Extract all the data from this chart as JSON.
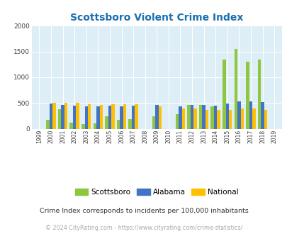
{
  "title": "Scottsboro Violent Crime Index",
  "title_color": "#1a6faf",
  "years": [
    1999,
    2000,
    2001,
    2002,
    2003,
    2004,
    2005,
    2006,
    2007,
    2008,
    2009,
    2010,
    2011,
    2012,
    2013,
    2014,
    2015,
    2016,
    2017,
    2018,
    2019
  ],
  "scottsboro": [
    0,
    170,
    380,
    120,
    90,
    110,
    240,
    175,
    185,
    0,
    245,
    0,
    285,
    455,
    455,
    440,
    1345,
    1555,
    1300,
    1345,
    0
  ],
  "alabama": [
    0,
    490,
    455,
    450,
    430,
    430,
    450,
    440,
    450,
    0,
    455,
    0,
    435,
    460,
    455,
    445,
    490,
    525,
    530,
    515,
    0
  ],
  "national": [
    0,
    505,
    505,
    500,
    475,
    465,
    470,
    470,
    470,
    0,
    430,
    0,
    390,
    390,
    370,
    365,
    370,
    390,
    390,
    370,
    0
  ],
  "scottsboro_color": "#8dc63f",
  "alabama_color": "#4472c4",
  "national_color": "#ffc000",
  "plot_bg": "#ddeef6",
  "ylim": [
    0,
    2000
  ],
  "yticks": [
    0,
    500,
    1000,
    1500,
    2000
  ],
  "subtitle": "Crime Index corresponds to incidents per 100,000 inhabitants",
  "subtitle_color": "#333333",
  "footer": "© 2024 CityRating.com - https://www.cityrating.com/crime-statistics/",
  "footer_color": "#aaaaaa",
  "legend_labels": [
    "Scottsboro",
    "Alabama",
    "National"
  ],
  "bar_width": 0.27
}
